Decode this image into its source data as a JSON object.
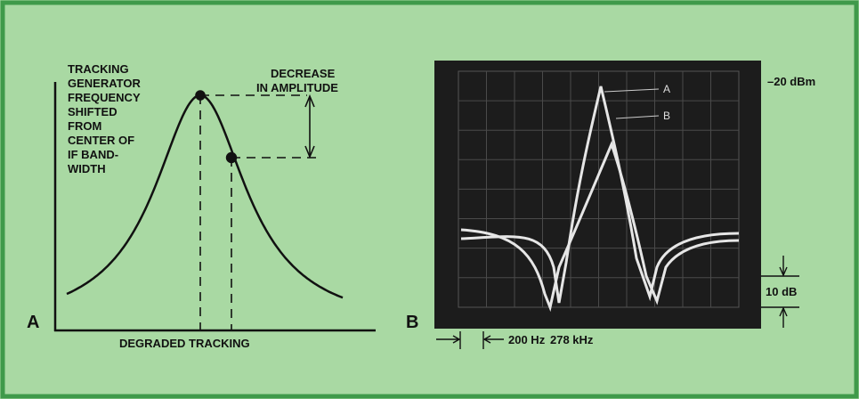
{
  "panel_a": {
    "label": "A",
    "side_note": [
      "TRACKING",
      "GENERATOR",
      "FREQUENCY",
      "SHIFTED",
      "FROM",
      "CENTER OF",
      "IF BAND-",
      "WIDTH"
    ],
    "amplitude_note": [
      "DECREASE",
      "IN AMPLITUDE"
    ],
    "caption": "DEGRADED TRACKING"
  },
  "panel_b": {
    "label": "B",
    "reference_level": "–20 dBm",
    "trace_labels": [
      "A",
      "B"
    ],
    "scale": "10 dB",
    "span_marker": "200 Hz",
    "center_frequency": "278 kHz"
  }
}
